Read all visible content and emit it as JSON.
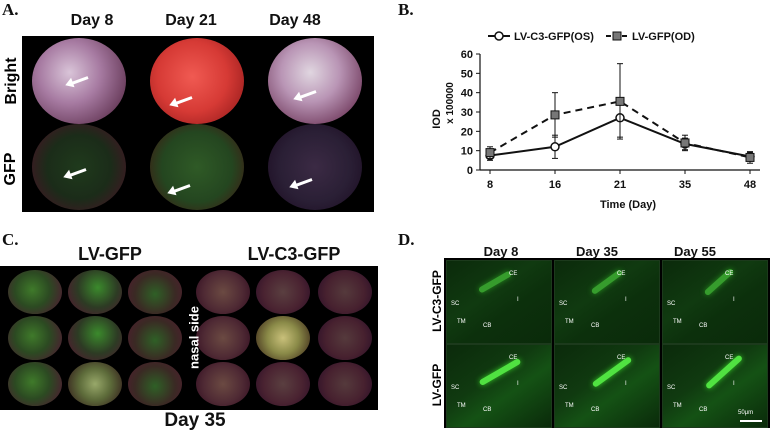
{
  "panelA": {
    "label": "A.",
    "days": [
      "Day 8",
      "Day 21",
      "Day 48"
    ],
    "rows": [
      "Bright",
      "GFP"
    ]
  },
  "panelB": {
    "label": "B.",
    "legend": [
      "LV-C3-GFP(OS)",
      "LV-GFP(OD)"
    ],
    "ylabel": "IOD",
    "yunit": "x 100000",
    "xlabel": "Time (Day)"
  },
  "panelC": {
    "label": "C.",
    "group1": "LV-GFP",
    "group2": "LV-C3-GFP",
    "side": "nasal side",
    "footer": "Day 35"
  },
  "panelD": {
    "label": "D.",
    "days": [
      "Day 8",
      "Day 35",
      "Day 55"
    ],
    "rows": [
      "LV-C3-GFP",
      "LV-GFP"
    ],
    "scalebar": "50μm",
    "tags": {
      "ce": "CE",
      "sc": "SC",
      "tm": "TM",
      "cb": "CB",
      "i": "I"
    }
  },
  "chart_data": {
    "type": "line",
    "x": [
      8,
      16,
      21,
      35,
      48
    ],
    "xticks": [
      "8",
      "16",
      "21",
      "35",
      "48"
    ],
    "ylim": [
      0,
      60
    ],
    "yticks": [
      0,
      10,
      20,
      30,
      40,
      50,
      60
    ],
    "xlabel": "Time (Day)",
    "ylabel": "IOD",
    "yunit": "x 100000",
    "legend_position": "top",
    "grid": false,
    "series": [
      {
        "name": "LV-C3-GFP(OS)",
        "values": [
          7.5,
          12,
          27,
          13.5,
          7
        ],
        "err": [
          2.5,
          6,
          10,
          3,
          2
        ],
        "marker": "open-circle",
        "line": "solid",
        "color": "#111111"
      },
      {
        "name": "LV-GFP(OD)",
        "values": [
          9,
          28.5,
          35.5,
          14,
          6.5
        ],
        "err": [
          3,
          11.5,
          19.5,
          4,
          3
        ],
        "marker": "square",
        "line": "dashed",
        "color": "#111111"
      }
    ]
  }
}
